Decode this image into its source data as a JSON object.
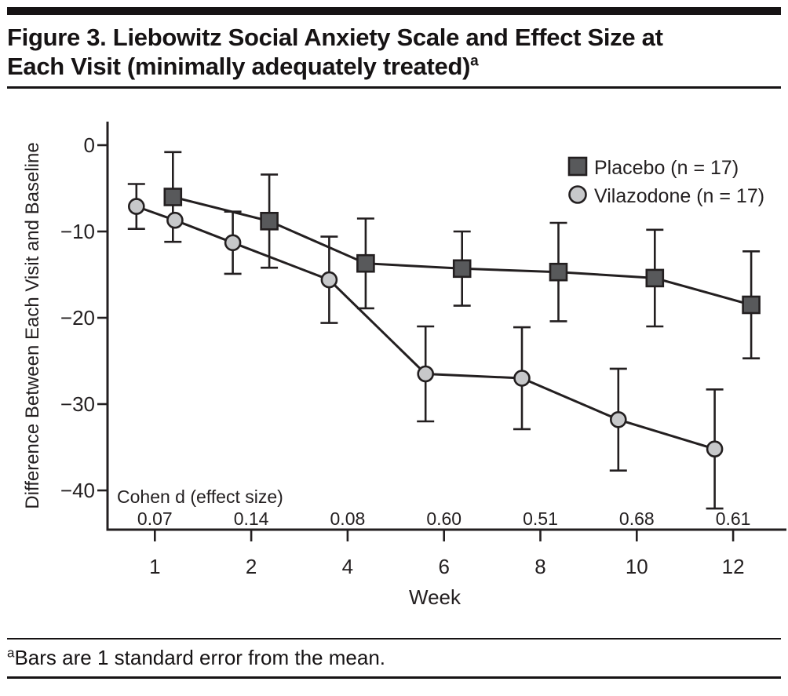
{
  "figure": {
    "title_line1": "Figure 3. Liebowitz Social Anxiety Scale and Effect Size at",
    "title_line2": "Each Visit (minimally adequately treated)",
    "title_superscript": "a",
    "footnote_superscript": "a",
    "footnote": "Bars are 1 standard error from the mean."
  },
  "chart_data": {
    "type": "line",
    "xlabel": "Week",
    "ylabel": "Difference Between Each Visit and Baseline",
    "x_axis": {
      "tick_weeks": [
        1,
        2,
        4,
        6,
        8,
        10,
        12
      ],
      "tick_labels": [
        "1",
        "2",
        "4",
        "6",
        "8",
        "10",
        "12"
      ]
    },
    "y_axis": {
      "tick_values": [
        0,
        -10,
        -20,
        -30,
        -40
      ],
      "tick_labels": [
        "0",
        "−10",
        "−20",
        "−30",
        "−40"
      ],
      "range": [
        -44.5,
        2.7
      ]
    },
    "grid": "off",
    "legend_position": "top-right",
    "series": [
      {
        "name": "Placebo (n = 17)",
        "n": 17,
        "marker": "square",
        "marker_fill": "#58595b",
        "marker_stroke": "#231f20",
        "weeks": [
          1,
          2,
          4,
          6,
          8,
          10,
          12
        ],
        "values": [
          -6.0,
          -8.8,
          -13.7,
          -14.3,
          -14.7,
          -15.4,
          -18.5
        ],
        "standard_errors": [
          5.2,
          5.4,
          5.2,
          4.3,
          5.7,
          5.6,
          6.2
        ]
      },
      {
        "name": "Vilazodone (n = 17)",
        "n": 17,
        "marker": "circle",
        "marker_fill": "#c7c8ca",
        "marker_stroke": "#231f20",
        "weeks": [
          1,
          1.4,
          2,
          4,
          6,
          8,
          10,
          12
        ],
        "values": [
          -7.1,
          -8.7,
          -11.3,
          -15.6,
          -26.5,
          -27.0,
          -31.8,
          -35.2
        ],
        "standard_errors": [
          2.6,
          null,
          3.6,
          5.0,
          5.5,
          5.9,
          5.9,
          6.9
        ]
      }
    ],
    "effect_sizes": {
      "label": "Cohen d (effect size)",
      "values": [
        "0.07",
        "0.14",
        "0.08",
        "0.60",
        "0.51",
        "0.68",
        "0.61"
      ],
      "aligned_to_weeks": [
        1,
        2,
        4,
        6,
        8,
        10,
        12
      ]
    },
    "notes": "Vilazodone series shows an additional unlabeled marker between weeks 1 and 2 (plotted at the placebo week-1 x-position, on the connecting line, without its own error bar).",
    "colors": {
      "axis": "#231f20",
      "line": "#231f20",
      "text": "#231f20"
    }
  }
}
